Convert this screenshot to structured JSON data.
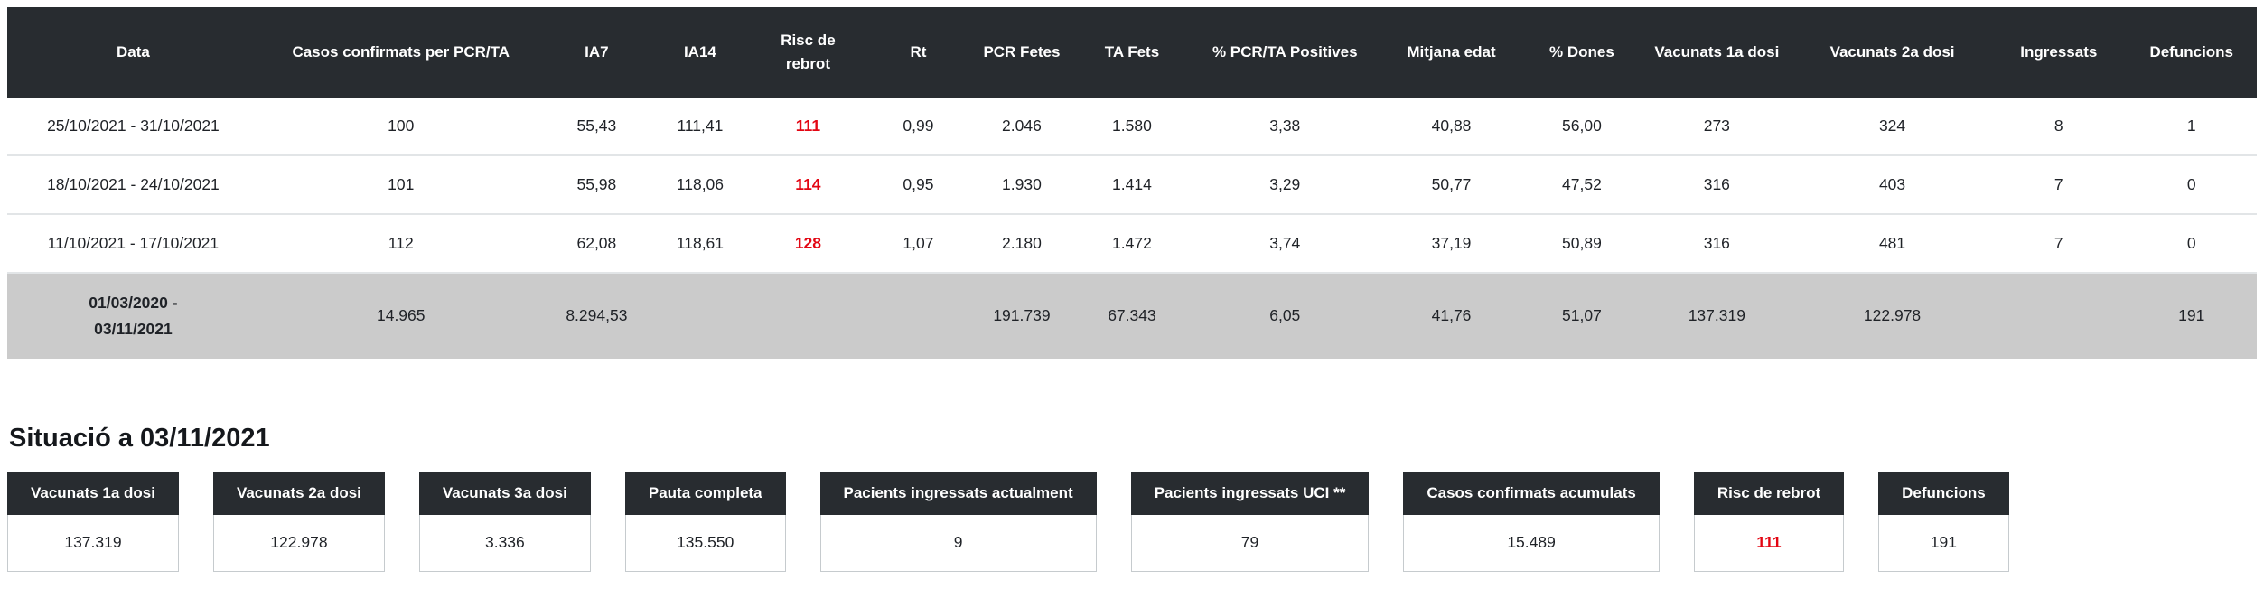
{
  "colors": {
    "header_bg": "#282c30",
    "total_row_bg": "#cbcbcb",
    "risk_red": "#e30613"
  },
  "table": {
    "red_column_index": 4,
    "columns": [
      "Data",
      "Casos confirmats per PCR/TA",
      "IA7",
      "IA14",
      "Risc de rebrot",
      "Rt",
      "PCR Fetes",
      "TA Fets",
      "% PCR/TA Positives",
      "Mitjana edat",
      "% Dones",
      "Vacunats 1a dosi",
      "Vacunats 2a dosi",
      "Ingressats",
      "Defuncions"
    ],
    "rows": [
      {
        "cells": [
          "25/10/2021 - 31/10/2021",
          "100",
          "55,43",
          "111,41",
          "111",
          "0,99",
          "2.046",
          "1.580",
          "3,38",
          "40,88",
          "56,00",
          "273",
          "324",
          "8",
          "1"
        ]
      },
      {
        "cells": [
          "18/10/2021 - 24/10/2021",
          "101",
          "55,98",
          "118,06",
          "114",
          "0,95",
          "1.930",
          "1.414",
          "3,29",
          "50,77",
          "47,52",
          "316",
          "403",
          "7",
          "0"
        ]
      },
      {
        "cells": [
          "11/10/2021 - 17/10/2021",
          "112",
          "62,08",
          "118,61",
          "128",
          "1,07",
          "2.180",
          "1.472",
          "3,74",
          "37,19",
          "50,89",
          "316",
          "481",
          "7",
          "0"
        ]
      }
    ],
    "total_row": {
      "cells": [
        "01/03/2020 -\n03/11/2021",
        "14.965",
        "8.294,53",
        "",
        "",
        "",
        "191.739",
        "67.343",
        "6,05",
        "41,76",
        "51,07",
        "137.319",
        "122.978",
        "",
        "191"
      ]
    }
  },
  "situation": {
    "title": "Situació a 03/11/2021",
    "cards": [
      {
        "label": "Vacunats 1a dosi",
        "value": "137.319",
        "highlight": false
      },
      {
        "label": "Vacunats 2a dosi",
        "value": "122.978",
        "highlight": false
      },
      {
        "label": "Vacunats 3a dosi",
        "value": "3.336",
        "highlight": false
      },
      {
        "label": "Pauta completa",
        "value": "135.550",
        "highlight": false
      },
      {
        "label": "Pacients ingressats actualment",
        "value": "9",
        "highlight": false
      },
      {
        "label": "Pacients ingressats UCI **",
        "value": "79",
        "highlight": false
      },
      {
        "label": "Casos confirmats acumulats",
        "value": "15.489",
        "highlight": false
      },
      {
        "label": "Risc de rebrot",
        "value": "111",
        "highlight": true
      },
      {
        "label": "Defuncions",
        "value": "191",
        "highlight": false
      }
    ]
  }
}
